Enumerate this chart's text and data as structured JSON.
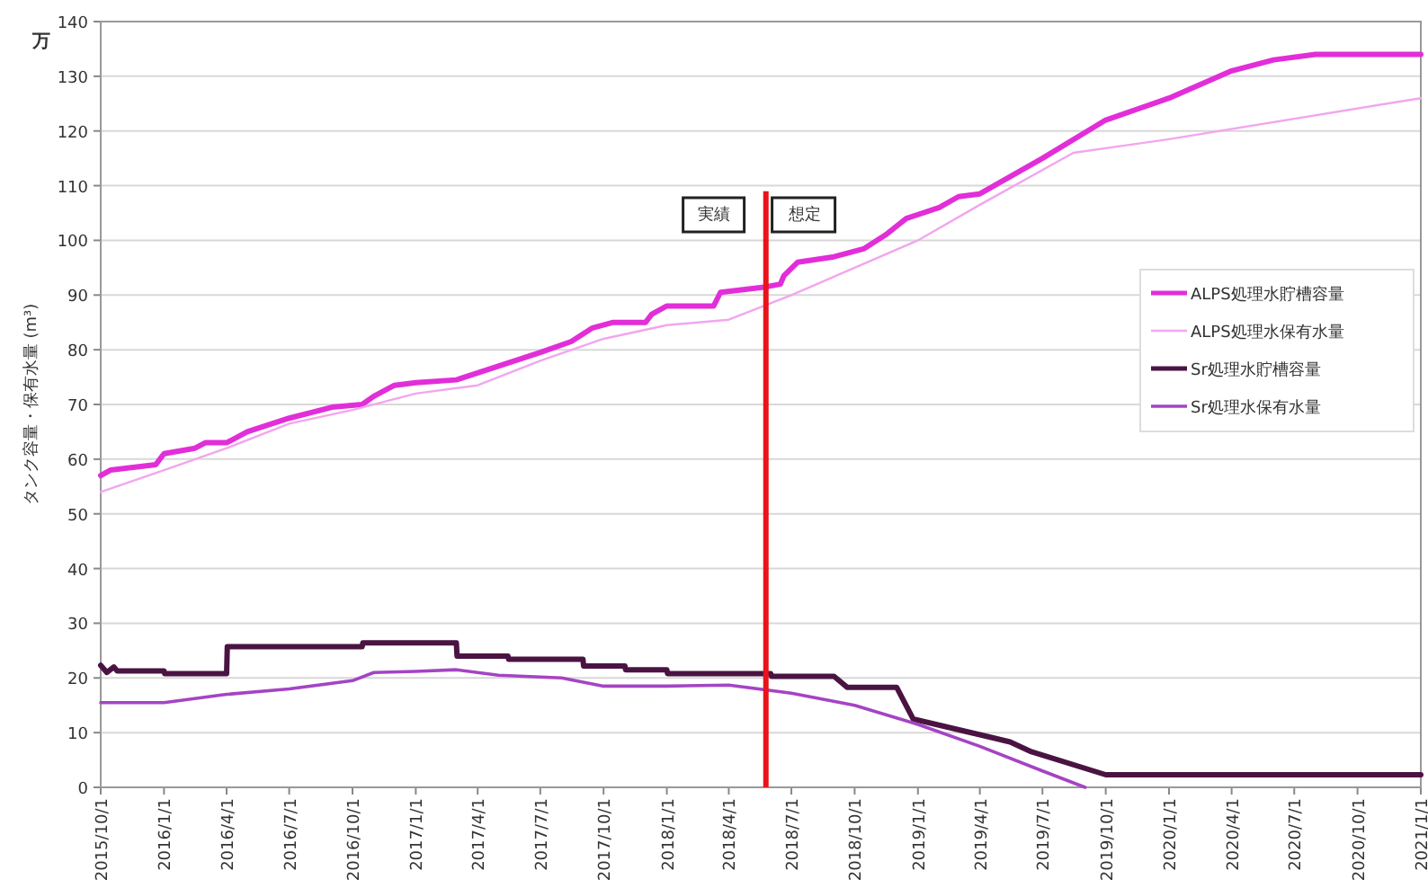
{
  "chart_data": {
    "type": "line",
    "ylabel": "タンク容量・保有水量 (m³)",
    "annotations": [
      "万",
      {
        "text": "実績",
        "x": "2018-03-10",
        "y": 105
      },
      {
        "text": "想定",
        "x": "2018-07-20",
        "y": 105
      }
    ],
    "xlim": [
      "2015-10-01",
      "2021-01-01"
    ],
    "xticks": [
      {
        "value": "2015-10-01",
        "label": "2015/10/1"
      },
      {
        "value": "2016-01-01",
        "label": "2016/1/1"
      },
      {
        "value": "2016-04-01",
        "label": "2016/4/1"
      },
      {
        "value": "2016-07-01",
        "label": "2016/7/1"
      },
      {
        "value": "2016-10-01",
        "label": "2016/10/1"
      },
      {
        "value": "2017-01-01",
        "label": "2017/1/1"
      },
      {
        "value": "2017-04-01",
        "label": "2017/4/1"
      },
      {
        "value": "2017-07-01",
        "label": "2017/7/1"
      },
      {
        "value": "2017-10-01",
        "label": "2017/10/1"
      },
      {
        "value": "2018-01-01",
        "label": "2018/1/1"
      },
      {
        "value": "2018-04-01",
        "label": "2018/4/1"
      },
      {
        "value": "2018-07-01",
        "label": "2018/7/1"
      },
      {
        "value": "2018-10-01",
        "label": "2018/10/1"
      },
      {
        "value": "2019-01-01",
        "label": "2019/1/1"
      },
      {
        "value": "2019-04-01",
        "label": "2019/4/1"
      },
      {
        "value": "2019-07-01",
        "label": "2019/7/1"
      },
      {
        "value": "2019-10-01",
        "label": "2019/10/1"
      },
      {
        "value": "2020-01-01",
        "label": "2020/1/1"
      },
      {
        "value": "2020-04-01",
        "label": "2020/4/1"
      },
      {
        "value": "2020-07-01",
        "label": "2020/7/1"
      },
      {
        "value": "2020-10-01",
        "label": "2020/10/1"
      },
      {
        "value": "2021-01-01",
        "label": "2021/1/1"
      }
    ],
    "ylim": [
      0,
      140
    ],
    "yticks": [
      0,
      10,
      20,
      30,
      40,
      50,
      60,
      70,
      80,
      90,
      100,
      110,
      120,
      130,
      140
    ],
    "grid": "y",
    "legend": "right",
    "marker": "none",
    "line_style": "solid",
    "ref_lines": [
      {
        "axis": "x",
        "value": "2018-05-25",
        "color": "#e8141c"
      }
    ],
    "series": [
      {
        "name": "ALPS処理水貯槽容量",
        "color": "#e22ed8",
        "x": [
          "2015-10-01",
          "2015-10-15",
          "2015-12-20",
          "2016-01-01",
          "2016-02-15",
          "2016-03-01",
          "2016-04-01",
          "2016-05-01",
          "2016-07-01",
          "2016-09-01",
          "2016-10-15",
          "2016-11-01",
          "2016-12-01",
          "2017-01-01",
          "2017-03-01",
          "2017-05-01",
          "2017-07-01",
          "2017-08-15",
          "2017-09-15",
          "2017-10-15",
          "2017-12-01",
          "2017-12-10",
          "2018-01-01",
          "2018-03-10",
          "2018-03-20",
          "2018-05-25",
          "2018-06-15",
          "2018-06-20",
          "2018-07-10",
          "2018-09-01",
          "2018-10-15",
          "2018-11-15",
          "2018-12-15",
          "2019-02-01",
          "2019-03-01",
          "2019-04-01",
          "2019-07-01",
          "2019-10-01",
          "2020-01-01",
          "2020-04-01",
          "2020-06-01",
          "2020-08-01",
          "2021-01-01"
        ],
        "values": [
          57,
          58,
          59,
          61,
          62,
          63,
          63,
          65,
          67.5,
          69.5,
          70,
          71.5,
          73.5,
          74,
          74.5,
          77,
          79.5,
          81.5,
          84,
          85,
          85,
          86.5,
          88,
          88,
          90.5,
          91.5,
          92,
          93.5,
          96,
          97,
          98.5,
          101,
          104,
          106,
          108,
          108.5,
          115,
          122,
          126,
          131,
          133,
          134,
          134
        ]
      },
      {
        "name": "ALPS処理水保有水量",
        "color": "#f2a6ee",
        "x": [
          "2015-10-01",
          "2016-01-01",
          "2016-04-01",
          "2016-07-01",
          "2016-10-01",
          "2017-01-01",
          "2017-04-01",
          "2017-07-01",
          "2017-10-01",
          "2018-01-01",
          "2018-04-01",
          "2018-07-01",
          "2018-10-01",
          "2019-01-01",
          "2019-04-01",
          "2019-08-15",
          "2020-01-01",
          "2021-01-01"
        ],
        "values": [
          54,
          58,
          62,
          66.5,
          69,
          72,
          73.5,
          78,
          82,
          84.5,
          85.5,
          90,
          95,
          100,
          106.5,
          116,
          118.5,
          126
        ]
      },
      {
        "name": "Sr処理水貯槽容量",
        "color": "#4a1442",
        "x": [
          "2015-10-01",
          "2015-10-10",
          "2015-10-20",
          "2015-10-25",
          "2016-01-01",
          "2016-01-02",
          "2016-04-01",
          "2016-04-02",
          "2016-10-15",
          "2016-10-16",
          "2017-03-01",
          "2017-03-02",
          "2017-05-15",
          "2017-05-16",
          "2017-09-01",
          "2017-09-02",
          "2017-11-01",
          "2017-11-02",
          "2018-01-01",
          "2018-01-02",
          "2018-06-01",
          "2018-06-02",
          "2018-09-01",
          "2018-09-20",
          "2018-12-01",
          "2018-12-25",
          "2019-04-15",
          "2019-05-15",
          "2019-06-15",
          "2019-10-01",
          "2021-01-01"
        ],
        "values": [
          22.3,
          21,
          22,
          21.3,
          21.3,
          20.8,
          20.8,
          25.7,
          25.7,
          26.4,
          26.4,
          24,
          24,
          23.4,
          23.4,
          22.2,
          22.2,
          21.5,
          21.5,
          20.8,
          20.8,
          20.3,
          20.3,
          18.3,
          18.3,
          12.5,
          9.2,
          8.3,
          6.5,
          2.3,
          2.3
        ]
      },
      {
        "name": "Sr処理水保有水量",
        "color": "#a444c4",
        "x": [
          "2015-10-01",
          "2016-01-01",
          "2016-04-01",
          "2016-07-01",
          "2016-10-01",
          "2016-11-01",
          "2017-01-01",
          "2017-03-01",
          "2017-05-01",
          "2017-08-01",
          "2017-10-01",
          "2018-01-01",
          "2018-04-01",
          "2018-07-01",
          "2018-10-01",
          "2019-01-01",
          "2019-04-01",
          "2019-07-01",
          "2019-09-01"
        ],
        "values": [
          15.5,
          15.5,
          17,
          18,
          19.5,
          21,
          21.2,
          21.5,
          20.5,
          20,
          18.5,
          18.5,
          18.7,
          17.2,
          15,
          11.5,
          7.5,
          3,
          0
        ]
      }
    ]
  }
}
